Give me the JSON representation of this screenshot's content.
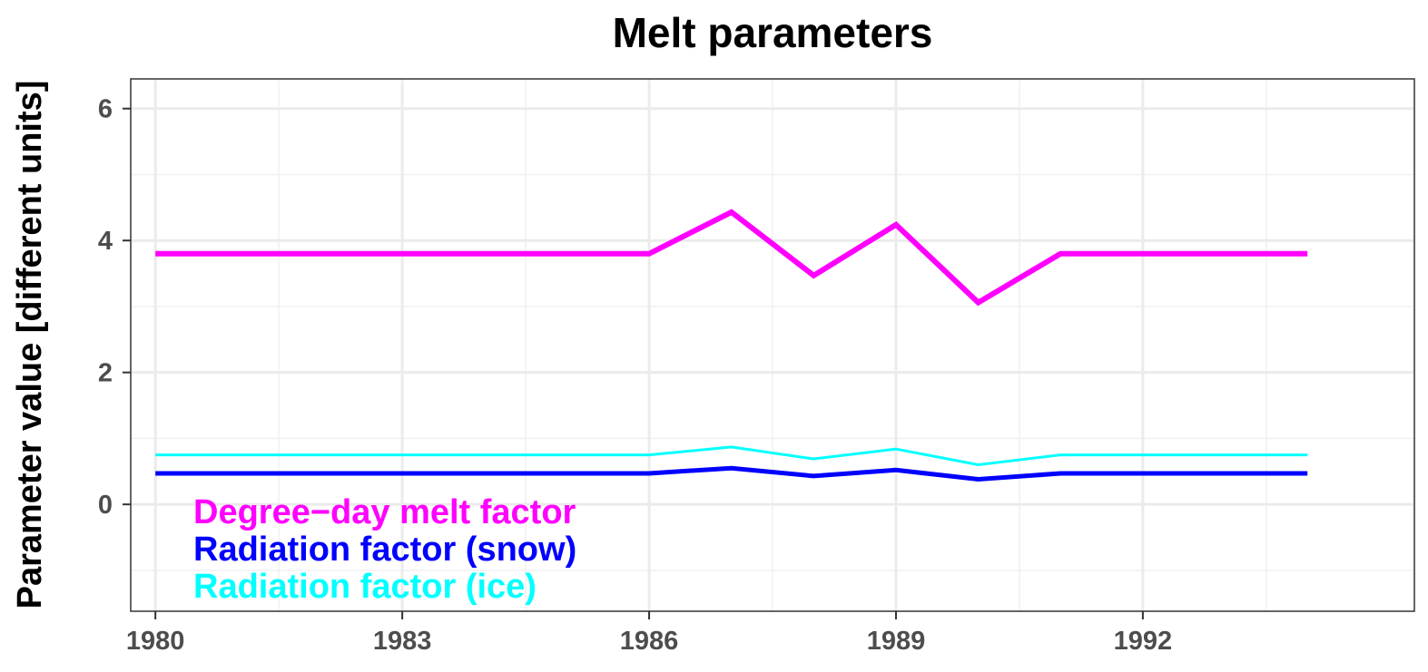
{
  "chart_data": {
    "type": "line",
    "title": "Melt parameters",
    "xlabel": "",
    "ylabel": "Parameter value [different units]",
    "xlim": [
      1979.7,
      1995.3
    ],
    "ylim": [
      -1.62,
      6.45
    ],
    "x_ticks": [
      1980,
      1983,
      1986,
      1989,
      1992
    ],
    "x_minor_ticks": [
      1981.5,
      1984.5,
      1987.5,
      1990.5,
      1993.5
    ],
    "y_ticks": [
      0,
      2,
      4,
      6
    ],
    "y_minor_ticks": [
      -1,
      1,
      3,
      5
    ],
    "grid": true,
    "legend_position": "bottom-left",
    "x": [
      1980,
      1981,
      1982,
      1983,
      1984,
      1985,
      1986,
      1987,
      1988,
      1989,
      1990,
      1991,
      1992,
      1993,
      1994
    ],
    "series": [
      {
        "name": "Degree−day melt factor",
        "color": "#ff00ff",
        "values": [
          3.8,
          3.8,
          3.8,
          3.8,
          3.8,
          3.8,
          3.8,
          4.43,
          3.47,
          4.24,
          3.06,
          3.8,
          3.8,
          3.8,
          3.8
        ]
      },
      {
        "name": "Radiation factor (snow)",
        "color": "#0000ff",
        "values": [
          0.47,
          0.47,
          0.47,
          0.47,
          0.47,
          0.47,
          0.47,
          0.55,
          0.43,
          0.52,
          0.38,
          0.47,
          0.47,
          0.47,
          0.47
        ]
      },
      {
        "name": "Radiation factor (ice)",
        "color": "#00ffff",
        "values": [
          0.75,
          0.75,
          0.75,
          0.75,
          0.75,
          0.75,
          0.75,
          0.87,
          0.69,
          0.84,
          0.6,
          0.75,
          0.75,
          0.75,
          0.75
        ]
      }
    ]
  }
}
